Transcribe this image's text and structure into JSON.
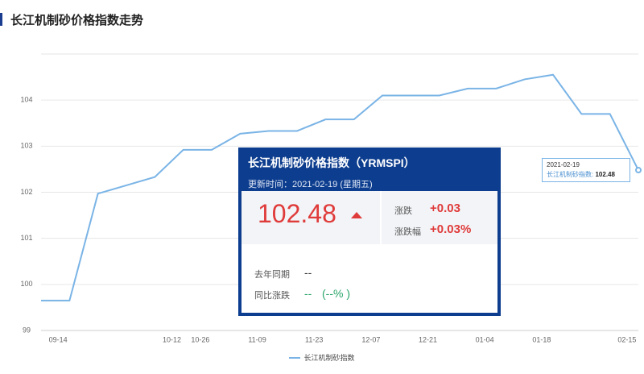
{
  "header": {
    "title": "长江机制砂价格指数走势"
  },
  "chart_data": {
    "type": "line",
    "categories": [
      null,
      "09-14",
      null,
      null,
      null,
      "10-12",
      "10-26",
      null,
      "11-09",
      null,
      "11-23",
      null,
      "12-07",
      null,
      "12-21",
      null,
      "01-04",
      null,
      "01-18",
      null,
      null,
      "02-15"
    ],
    "series": [
      {
        "name": "长江机制砂指数",
        "color": "#7ab4e6",
        "values": [
          99.65,
          99.65,
          101.97,
          102.15,
          102.33,
          102.92,
          102.92,
          103.27,
          103.33,
          103.33,
          103.58,
          103.58,
          104.1,
          104.1,
          104.1,
          104.25,
          104.25,
          104.45,
          104.55,
          103.7,
          103.7,
          102.48
        ]
      }
    ],
    "ylim": [
      99,
      105
    ],
    "yticks": [
      99,
      100,
      101,
      102,
      103,
      104
    ],
    "grid": true
  },
  "tooltip": {
    "date": "2021-02-19",
    "label": "长江机制砂指数:",
    "value": 102.48
  },
  "card": {
    "title": "长江机制砂价格指数（YRMSPI）",
    "updated": "更新时间：2021-02-19 (星期五)",
    "value": 102.48,
    "change_label": "涨跌",
    "change": "+0.03",
    "pct_label": "涨跌幅",
    "pct": "+0.03%",
    "last_year_label": "去年同期",
    "last_year": "--",
    "yoy_label": "同比涨跌",
    "yoy": "--",
    "yoy_pct": "(--% )"
  }
}
